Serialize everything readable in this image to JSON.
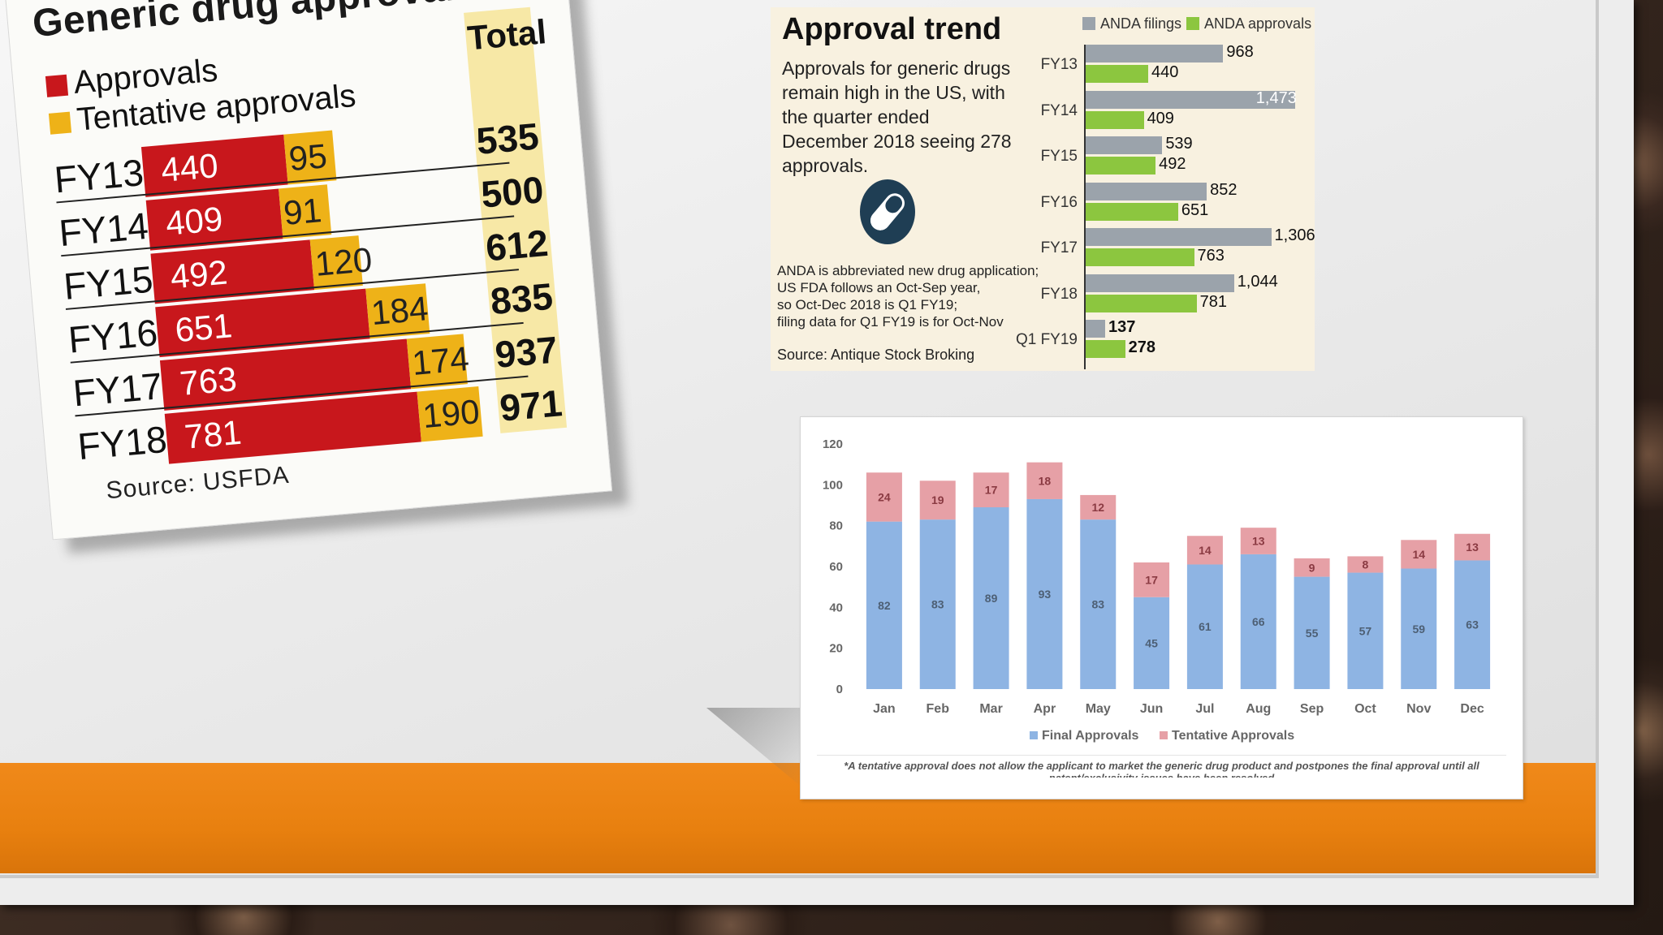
{
  "card_approvals": {
    "title": "Generic drug approvals",
    "legend": [
      {
        "label": "Approvals",
        "color": "#c8171c"
      },
      {
        "label": "Tentative approvals",
        "color": "#eeb218"
      }
    ],
    "total_header": "Total",
    "source": "Source: USFDA",
    "chart_data": {
      "type": "bar",
      "orientation": "horizontal",
      "stacked": true,
      "title": "Generic drug approvals",
      "categories": [
        "FY13",
        "FY14",
        "FY15",
        "FY16",
        "FY17",
        "FY18"
      ],
      "series": [
        {
          "name": "Approvals",
          "values": [
            440,
            409,
            492,
            651,
            763,
            781
          ]
        },
        {
          "name": "Tentative approvals",
          "values": [
            95,
            91,
            120,
            184,
            174,
            190
          ]
        }
      ],
      "totals": [
        535,
        500,
        612,
        835,
        937,
        971
      ]
    }
  },
  "card_trend": {
    "title": "Approval trend",
    "subtitle": "Approvals for generic drugs remain high in the US, with the quarter ended December 2018 seeing 278 approvals.",
    "note_lines": [
      "ANDA is abbreviated new drug application;",
      "US FDA follows an Oct-Sep year,",
      "so Oct-Dec 2018 is Q1 FY19;",
      "filing data for Q1 FY19 is for Oct-Nov"
    ],
    "source": "Source: Antique Stock Broking",
    "legend": [
      {
        "label": "ANDA filings",
        "color": "#9ba3ab"
      },
      {
        "label": "ANDA approvals",
        "color": "#8cc63f"
      }
    ],
    "icon": "pill-icon",
    "chart_data": {
      "type": "bar",
      "orientation": "horizontal",
      "categories": [
        "FY13",
        "FY14",
        "FY15",
        "FY16",
        "FY17",
        "FY18",
        "Q1 FY19"
      ],
      "series": [
        {
          "name": "ANDA filings",
          "values": [
            968,
            1473,
            539,
            852,
            1306,
            1044,
            137
          ]
        },
        {
          "name": "ANDA approvals",
          "values": [
            440,
            409,
            492,
            651,
            763,
            781,
            278
          ]
        }
      ],
      "value_labels": {
        "ANDA filings": [
          "968",
          "1,473",
          "539",
          "852",
          "1,306",
          "1,044",
          "137"
        ],
        "ANDA approvals": [
          "440",
          "409",
          "492",
          "651",
          "763",
          "781",
          "278"
        ]
      }
    }
  },
  "card_monthly": {
    "footnote": "*A tentative approval does not allow the applicant to market the generic drug product and postpones the final approval until all patent/exclusivity issues have been resolved",
    "chart_data": {
      "type": "bar",
      "stacked": true,
      "categories": [
        "Jan",
        "Feb",
        "Mar",
        "Apr",
        "May",
        "Jun",
        "Jul",
        "Aug",
        "Sep",
        "Oct",
        "Nov",
        "Dec"
      ],
      "series": [
        {
          "name": "Final Approvals",
          "color": "#8eb4e3",
          "values": [
            82,
            83,
            89,
            93,
            83,
            45,
            61,
            66,
            55,
            57,
            59,
            63
          ]
        },
        {
          "name": "Tentative Approvals",
          "color": "#e6a0a6",
          "values": [
            24,
            19,
            17,
            18,
            12,
            17,
            14,
            13,
            9,
            8,
            14,
            13
          ]
        }
      ],
      "ylim": [
        0,
        120
      ],
      "yticks": [
        "0",
        "20",
        "40",
        "60",
        "80",
        "100",
        "120"
      ],
      "legend_position": "bottom"
    }
  }
}
